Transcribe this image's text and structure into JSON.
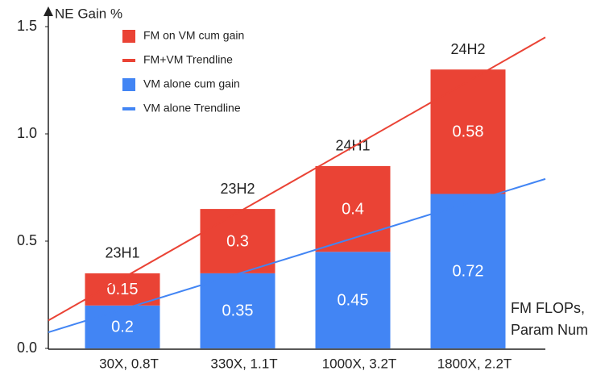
{
  "chart_data": {
    "type": "stacked_bar",
    "y_label": "NE Gain %",
    "x_label_lines": [
      "FM FLOPs,",
      "Param Num"
    ],
    "categories": [
      "30X, 0.8T",
      "330X, 1.1T",
      "1000X, 3.2T",
      "1800X, 2.2T"
    ],
    "bar_labels": [
      "23H1",
      "23H2",
      "24H1",
      "24H2"
    ],
    "series": [
      {
        "name": "VM alone cum gain",
        "color": "#4285f4",
        "values": [
          0.2,
          0.35,
          0.45,
          0.72
        ]
      },
      {
        "name": "FM on VM cum gain",
        "color": "#ea4335",
        "values": [
          0.15,
          0.3,
          0.4,
          0.58
        ]
      }
    ],
    "trendlines": [
      {
        "name": "FM+VM Trendline",
        "color": "#ea4335",
        "values": [
          0.13,
          1.45
        ]
      },
      {
        "name": "VM alone Trendline",
        "color": "#4285f4",
        "values": [
          0.075,
          0.79
        ]
      }
    ],
    "ylim": [
      0,
      1.5
    ],
    "yticks": [
      {
        "value": 0,
        "label": "0.0"
      },
      0.5,
      {
        "value": 1,
        "label": "1.0"
      },
      1.5
    ],
    "grid": false
  }
}
